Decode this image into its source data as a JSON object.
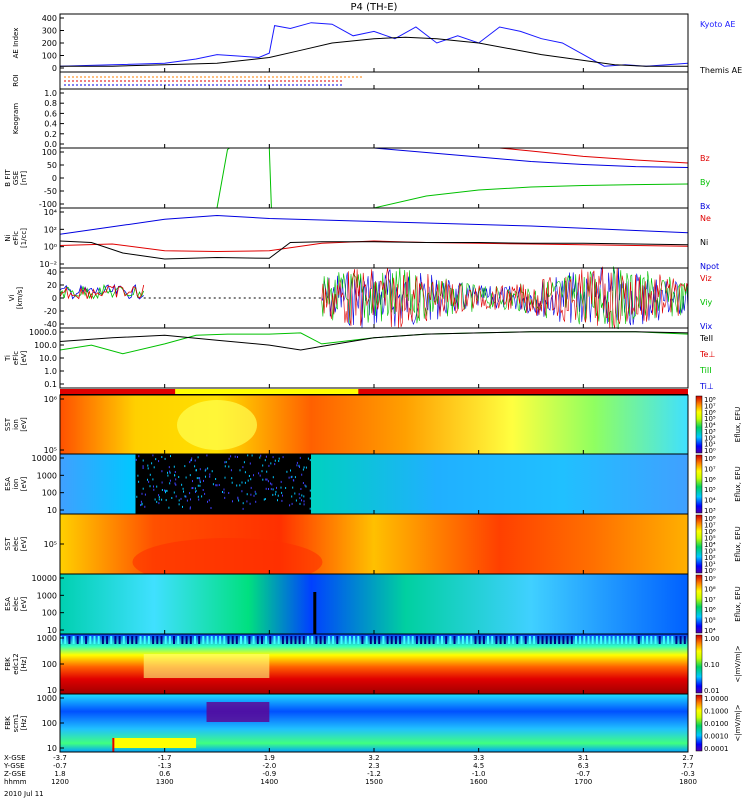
{
  "title": "P4 (TH-E)",
  "date_label": "2010 Jul 11",
  "colors": {
    "kyoto": "#1a1aff",
    "black": "#000000",
    "red": "#e00000",
    "green": "#00c000",
    "blue": "#0000e0",
    "orange": "#ff7f00"
  },
  "chart_data": {
    "type": "line",
    "x_range": [
      "12:00",
      "18:00"
    ],
    "x_ticks": [
      {
        "time": "12:00",
        "xgse": "-3.7",
        "ygse": "-0.7",
        "zgse": "1.8",
        "hhmm": "1200"
      },
      {
        "time": "13:00",
        "xgse": "-1.7",
        "ygse": "-1.3",
        "zgse": "0.6",
        "hhmm": "1300"
      },
      {
        "time": "14:00",
        "xgse": "1.9",
        "ygse": "-2.0",
        "zgse": "-0.9",
        "hhmm": "1400"
      },
      {
        "time": "15:00",
        "xgse": "3.2",
        "ygse": "2.3",
        "zgse": "-1.2",
        "hhmm": "1500"
      },
      {
        "time": "16:00",
        "xgse": "3.3",
        "ygse": "4.5",
        "zgse": "-1.0",
        "hhmm": "1600"
      },
      {
        "time": "17:00",
        "xgse": "3.1",
        "ygse": "6.3",
        "zgse": "-0.7",
        "hhmm": "1700"
      },
      {
        "time": "18:00",
        "xgse": "2.7",
        "ygse": "7.7",
        "zgse": "-0.3",
        "hhmm": "1800"
      }
    ],
    "ephem_labels": [
      "X-GSE",
      "Y-GSE",
      "Z-GSE",
      "hhmm"
    ],
    "panels": [
      {
        "id": "ae",
        "ylabel": "AE Index",
        "yticks": [
          "400",
          "300",
          "200",
          "100",
          "0"
        ],
        "ylim": [
          0,
          400
        ],
        "legend": [
          "Kyoto AE",
          "Themis AE"
        ],
        "series": [
          {
            "name": "Kyoto AE",
            "color": "#1a1aff",
            "x": [
              12.0,
              12.5,
              13.0,
              13.3,
              13.5,
              13.7,
              13.9,
              14.0,
              14.05,
              14.2,
              14.4,
              14.6,
              14.8,
              15.0,
              15.2,
              15.4,
              15.6,
              15.8,
              16.0,
              16.2,
              16.4,
              16.6,
              16.8,
              17.0,
              17.2,
              17.4,
              17.6,
              17.8,
              18.0
            ],
            "y": [
              40,
              50,
              60,
              90,
              120,
              110,
              100,
              130,
              320,
              300,
              340,
              330,
              250,
              280,
              230,
              310,
              200,
              250,
              200,
              310,
              280,
              230,
              200,
              120,
              40,
              50,
              40,
              50,
              60
            ]
          },
          {
            "name": "Themis AE",
            "color": "#000000",
            "x": [
              12.0,
              12.5,
              13.0,
              13.5,
              14.0,
              14.3,
              14.6,
              15.0,
              15.3,
              15.6,
              16.0,
              16.3,
              16.6,
              17.0,
              17.3,
              17.6,
              18.0
            ],
            "y": [
              40,
              40,
              50,
              60,
              100,
              150,
              200,
              230,
              240,
              230,
              200,
              160,
              120,
              80,
              50,
              40,
              40
            ]
          }
        ]
      },
      {
        "id": "roi",
        "ylabel": "ROI"
      },
      {
        "id": "keogram",
        "ylabel": "Keogram",
        "yticks": [
          "1.0",
          "0.8",
          "0.6",
          "0.4",
          "0.2",
          "0.0"
        ]
      },
      {
        "id": "bfit",
        "ylabel": [
          "B FIT",
          "GSE",
          "[nT]"
        ],
        "yticks": [
          "100",
          "50",
          "0",
          "-50",
          "-100"
        ],
        "ylim": [
          -100,
          100
        ],
        "legend": [
          "Bz",
          "By",
          "Bx"
        ],
        "series": [
          {
            "name": "Bz",
            "color": "#e00000",
            "x": [
              16.2,
              16.5,
              17.0,
              17.5,
              18.0
            ],
            "y": [
              100,
              90,
              72,
              60,
              50
            ]
          },
          {
            "name": "By",
            "color": "#00c000",
            "x": [
              13.5,
              13.6,
              13.62,
              13.9,
              14.0,
              14.02,
              15.0,
              15.5,
              16.0,
              16.5,
              17.0,
              17.5,
              18.0
            ],
            "y": [
              -100,
              95,
              100,
              100,
              100,
              -100,
              -100,
              -60,
              -40,
              -30,
              -25,
              -22,
              -20
            ]
          },
          {
            "name": "Bx",
            "color": "#0000e0",
            "x": [
              15.0,
              15.5,
              16.0,
              16.5,
              17.0,
              17.5,
              18.0
            ],
            "y": [
              100,
              85,
              70,
              55,
              45,
              38,
              35
            ]
          }
        ]
      },
      {
        "id": "ni",
        "ylabel": [
          "Ni",
          "eFlc",
          "[1/cc]"
        ],
        "yticks": [
          "10⁴",
          "10²",
          "10⁰",
          "10⁻²"
        ],
        "ylim": [
          -3,
          5
        ],
        "legend": [
          "Ne",
          "Ni",
          "Npot"
        ],
        "series": [
          {
            "name": "Ni",
            "color": "#0000e0",
            "x": [
              12.0,
              12.5,
              13.0,
              13.5,
              14.0,
              14.5,
              15.0,
              15.5,
              16.0,
              16.5,
              17.0,
              17.5,
              18.0
            ],
            "y": [
              1.5,
              2.5,
              3.5,
              4.0,
              3.6,
              3.4,
              3.2,
              3.0,
              2.8,
              2.6,
              2.3,
              2.0,
              1.7
            ]
          },
          {
            "name": "Ne",
            "color": "#e00000",
            "x": [
              12.0,
              12.5,
              13.0,
              13.5,
              14.0,
              14.5,
              15.0,
              15.5,
              16.0,
              16.5,
              17.0,
              17.5,
              18.0
            ],
            "y": [
              0.0,
              0.2,
              -0.7,
              -0.8,
              -0.7,
              0.3,
              0.6,
              0.4,
              0.3,
              0.2,
              0.1,
              0.0,
              -0.1
            ]
          },
          {
            "name": "Npot",
            "color": "#000000",
            "x": [
              12.0,
              12.3,
              12.6,
              13.0,
              13.5,
              14.0,
              14.2,
              14.5,
              15.0,
              15.5,
              16.0,
              16.5,
              17.0,
              17.5,
              18.0
            ],
            "y": [
              0.6,
              0.4,
              -1.0,
              -1.8,
              -1.6,
              -1.7,
              0.4,
              0.5,
              0.5,
              0.4,
              0.4,
              0.3,
              0.3,
              0.2,
              0.1
            ]
          }
        ]
      },
      {
        "id": "vi",
        "ylabel": [
          "Vi",
          "[km/s]"
        ],
        "yticks": [
          "40",
          "20",
          "0",
          "-20",
          "-40"
        ],
        "ylim": [
          -50,
          50
        ],
        "legend": [
          "Viz",
          "Viy",
          "Vix"
        ]
      },
      {
        "id": "ti",
        "ylabel": [
          "Ti",
          "eFlc",
          "[eV]"
        ],
        "yticks": [
          "1000.0",
          "100.0",
          "10.0",
          "1.0",
          "0.1"
        ],
        "ylim": [
          -1.3,
          3.6
        ],
        "legend": [
          "TeII",
          "Te⊥",
          "TiII",
          "Ti⊥"
        ],
        "series": [
          {
            "name": "TiII",
            "color": "#00c000",
            "x": [
              12.0,
              12.3,
              12.6,
              13.0,
              13.3,
              13.6,
              14.0,
              14.3,
              14.5,
              15.0,
              15.5,
              16.0,
              16.5,
              17.0,
              17.5,
              18.0
            ],
            "y": [
              1.8,
              2.2,
              1.5,
              2.3,
              3.0,
              3.1,
              3.1,
              3.2,
              2.3,
              2.8,
              3.1,
              3.2,
              3.3,
              3.3,
              3.3,
              3.1
            ]
          },
          {
            "name": "TeII",
            "color": "#000000",
            "x": [
              12.0,
              12.5,
              13.0,
              13.5,
              14.0,
              14.3,
              14.5,
              15.0,
              15.5,
              16.0,
              16.5,
              17.0,
              17.5,
              18.0
            ],
            "y": [
              2.5,
              2.8,
              3.0,
              2.6,
              2.2,
              1.8,
              2.1,
              2.8,
              3.1,
              3.2,
              3.3,
              3.3,
              3.3,
              3.2
            ]
          }
        ]
      },
      {
        "id": "sst_ion",
        "ylabel": [
          "SST",
          "ion",
          "[eV]"
        ],
        "yticks": [
          "10⁶",
          "10⁵"
        ],
        "colorbar": [
          "10⁸",
          "10⁷",
          "10⁶",
          "10⁵",
          "10⁴",
          "10³",
          "10²",
          "10¹",
          "10⁰"
        ],
        "cb_label": "Eflux, EFU"
      },
      {
        "id": "esa_ion",
        "ylabel": [
          "ESA",
          "ion",
          "[eV]"
        ],
        "yticks": [
          "10000",
          "1000",
          "100",
          "10"
        ],
        "colorbar": [
          "10⁸",
          "10⁷",
          "10⁶",
          "10⁵",
          "10⁴",
          "10³"
        ],
        "cb_label": "Eflux, EFU"
      },
      {
        "id": "sst_elec",
        "ylabel": [
          "SST",
          "elec",
          "[eV]"
        ],
        "yticks": [
          "10⁵"
        ],
        "colorbar": [
          "10⁸",
          "10⁷",
          "10⁶",
          "10⁵",
          "10⁴",
          "10³",
          "10²",
          "10¹",
          "10⁰"
        ],
        "cb_label": "Eflux, EFU"
      },
      {
        "id": "esa_elec",
        "ylabel": [
          "ESA",
          "elec",
          "[eV]"
        ],
        "yticks": [
          "10000",
          "1000",
          "100",
          "10"
        ],
        "colorbar": [
          "10⁹",
          "10⁸",
          "10⁷",
          "10⁶",
          "10⁵",
          "10⁴"
        ],
        "cb_label": "Eflux, EFU"
      },
      {
        "id": "fbk_e",
        "ylabel": [
          "FBK",
          "edc12",
          "[Hz]"
        ],
        "yticks": [
          "1000",
          "100",
          "10"
        ],
        "colorbar": [
          "1.00",
          "0.10",
          "0.01"
        ],
        "cb_label": "<|mV/m|>"
      },
      {
        "id": "fbk_b",
        "ylabel": [
          "FBK",
          "scm1",
          "[Hz]"
        ],
        "yticks": [
          "1000",
          "100",
          "10"
        ],
        "colorbar": [
          "1.0000",
          "0.1000",
          "0.0100",
          "0.0010",
          "0.0001"
        ],
        "cb_label": "<|mV/m|>"
      }
    ]
  }
}
